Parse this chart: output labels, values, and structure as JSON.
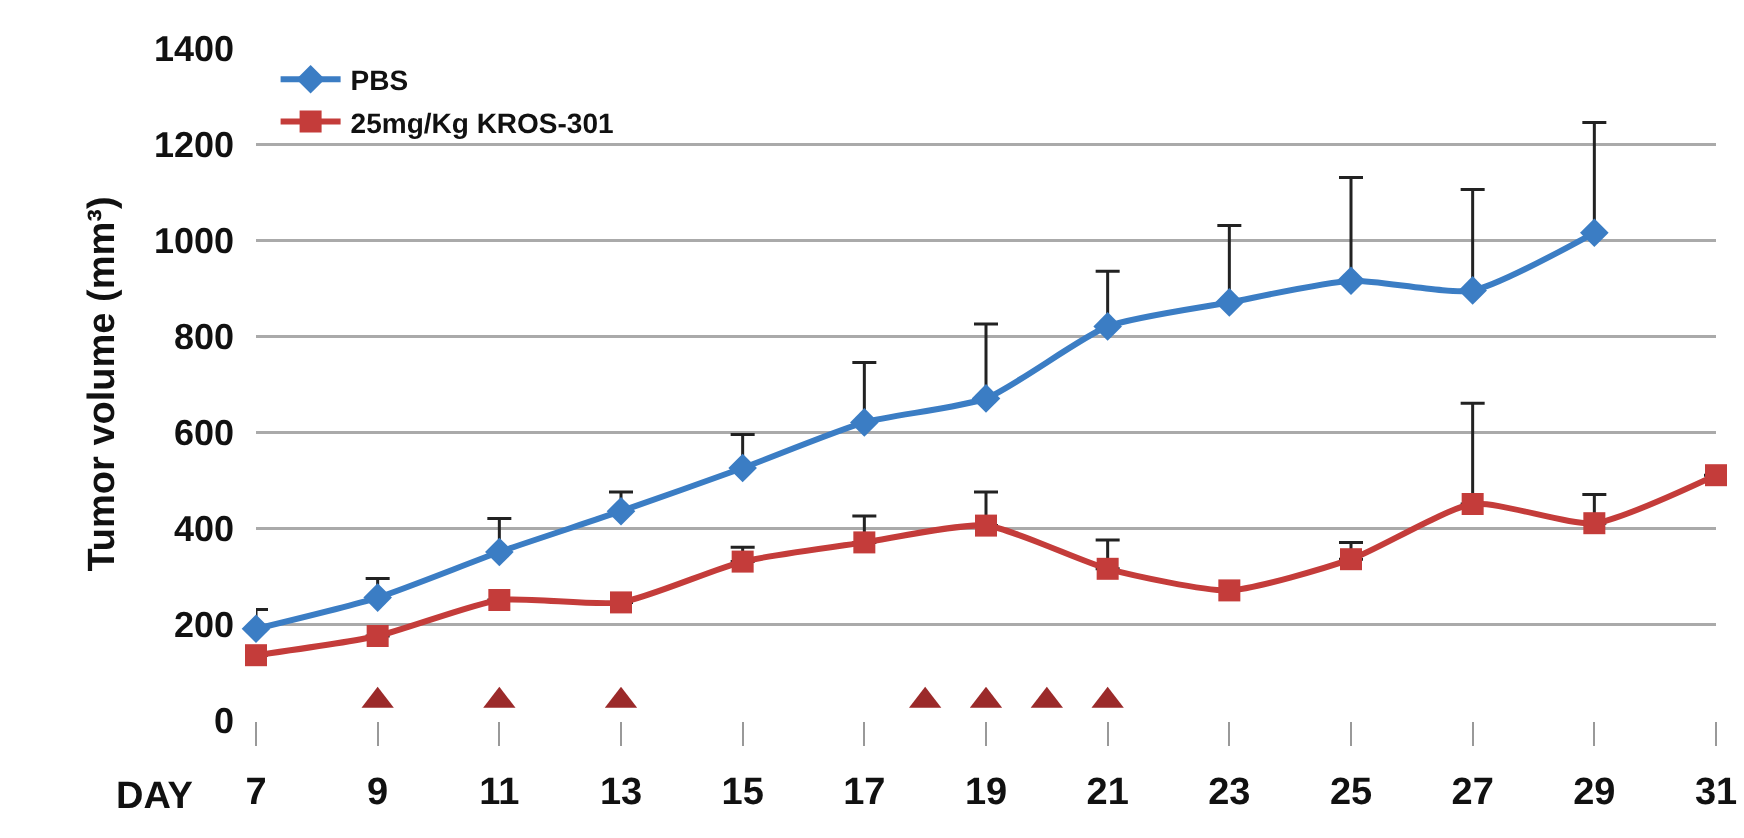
{
  "chart_data": {
    "type": "line",
    "xlabel": "DAY",
    "ylabel": "Tumor volume (mm³)",
    "x": [
      7,
      9,
      11,
      13,
      15,
      17,
      19,
      21,
      23,
      25,
      27,
      29,
      31
    ],
    "series": [
      {
        "name": "PBS",
        "color": "#3b7dc4",
        "marker": "diamond",
        "x": [
          7,
          9,
          11,
          13,
          15,
          17,
          19,
          21,
          23,
          25,
          27,
          29
        ],
        "values": [
          190,
          255,
          350,
          435,
          525,
          620,
          670,
          820,
          870,
          915,
          895,
          1015
        ],
        "errors": [
          [
            190,
            230
          ],
          [
            255,
            295
          ],
          [
            350,
            420
          ],
          [
            435,
            475
          ],
          [
            525,
            595
          ],
          [
            620,
            745
          ],
          [
            670,
            825
          ],
          [
            820,
            935
          ],
          [
            870,
            1030
          ],
          [
            915,
            1130
          ],
          [
            895,
            1105
          ],
          [
            1015,
            1245
          ]
        ]
      },
      {
        "type": "scatter",
        "color": "#9b2a2a",
        "marker": "triangle",
        "x": [
          9,
          11,
          13,
          18,
          19,
          20,
          21
        ],
        "values": [
          40,
          40,
          40,
          40,
          40,
          40,
          40
        ]
      },
      {
        "name": "25mg/Kg KROS-301",
        "color": "#c43c3a",
        "marker": "square",
        "values": [
          135,
          175,
          250,
          245,
          330,
          370,
          405,
          315,
          270,
          335,
          450,
          410,
          510
        ],
        "errors": [
          null,
          null,
          null,
          null,
          [
            330,
            360
          ],
          [
            370,
            425
          ],
          [
            405,
            475
          ],
          [
            315,
            375
          ],
          null,
          [
            335,
            370
          ],
          [
            450,
            660
          ],
          [
            410,
            470
          ],
          null
        ]
      }
    ],
    "xlim": [
      7,
      31
    ],
    "xticks": [
      7,
      9,
      11,
      13,
      15,
      17,
      19,
      21,
      23,
      25,
      27,
      29,
      31
    ],
    "ylim": [
      0,
      1400
    ],
    "yticks": [
      0,
      200,
      400,
      600,
      800,
      1000,
      1200,
      1400
    ],
    "grid": "y",
    "legend": "top left",
    "line_style": "solid"
  }
}
